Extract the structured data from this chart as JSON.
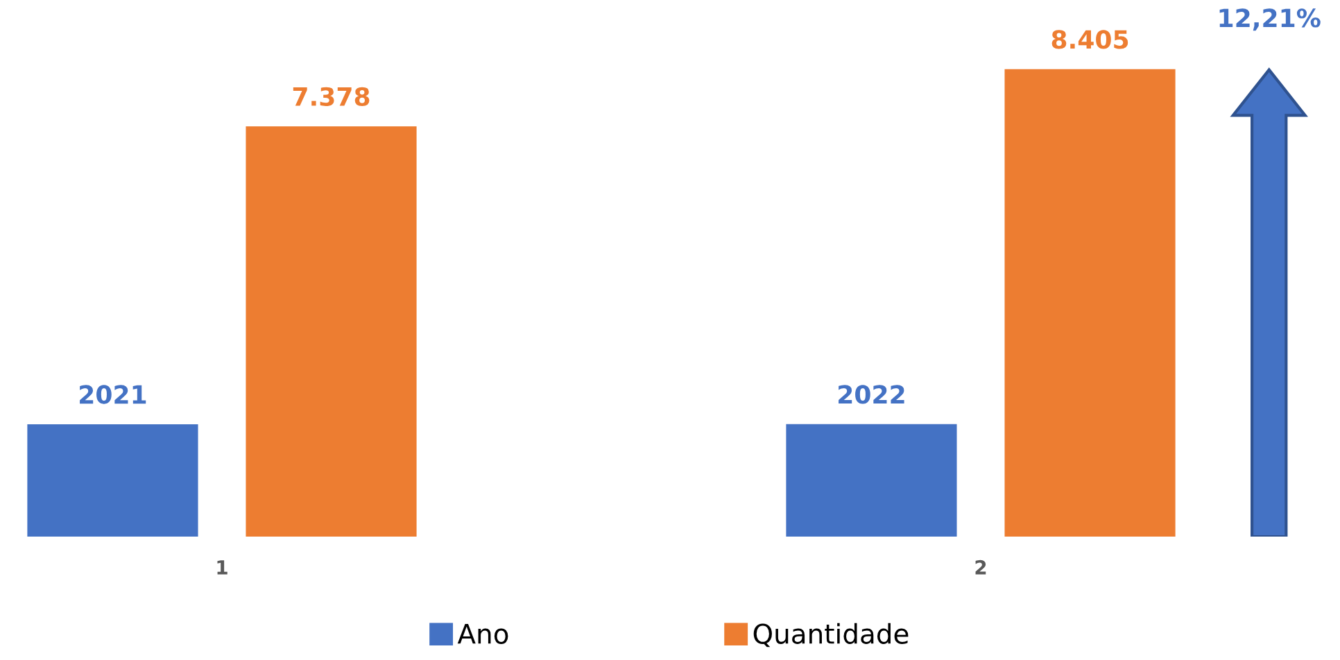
{
  "chart_data": {
    "type": "bar",
    "categories": [
      "1",
      "2"
    ],
    "series": [
      {
        "name": "Ano",
        "color": "#4472c4",
        "values": [
          2021,
          2022
        ],
        "value_labels": [
          "2021",
          "2022"
        ]
      },
      {
        "name": "Quantidade",
        "color": "#ed7d31",
        "values": [
          7378,
          8405
        ],
        "value_labels": [
          "7.378",
          "8.405"
        ]
      }
    ],
    "legend": "bottom",
    "grid": false,
    "tick_labels": "x",
    "annotations": [
      "12,21%"
    ]
  }
}
